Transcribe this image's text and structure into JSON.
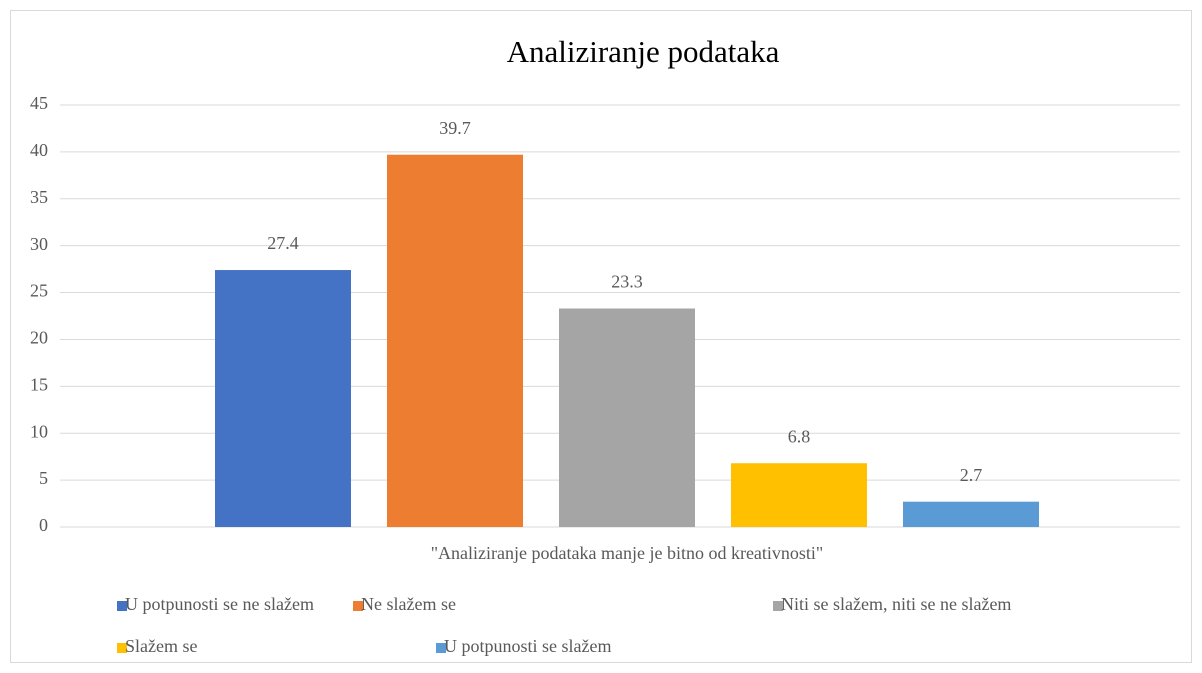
{
  "chart_data": {
    "type": "bar",
    "title": "Analiziranje podataka",
    "categories": [
      "\"Analiziranje podataka manje je bitno od kreativnosti\""
    ],
    "series": [
      {
        "name": "U potpunosti se ne slažem",
        "color": "#4472c4",
        "values": [
          27.4
        ]
      },
      {
        "name": "Ne slažem se",
        "color": "#ed7d31",
        "values": [
          39.7
        ]
      },
      {
        "name": "Niti se slažem, niti se ne slažem",
        "color": "#a5a5a5",
        "values": [
          23.3
        ]
      },
      {
        "name": "Slažem se",
        "color": "#ffc000",
        "values": [
          6.8
        ]
      },
      {
        "name": "U potpunosti se slažem",
        "color": "#5b9bd5",
        "values": [
          2.7
        ]
      }
    ],
    "ylim": [
      0,
      45
    ],
    "yticks": [
      0,
      5,
      10,
      15,
      20,
      25,
      30,
      35,
      40,
      45
    ],
    "grid": true,
    "legend": "bottom"
  }
}
